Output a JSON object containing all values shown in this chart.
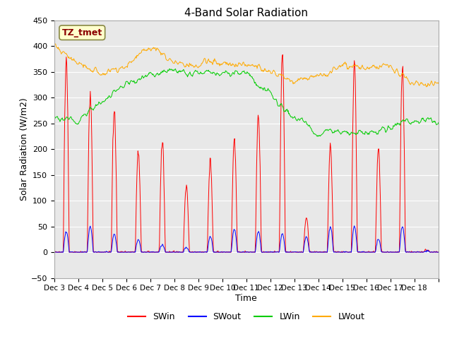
{
  "title": "4-Band Solar Radiation",
  "xlabel": "Time",
  "ylabel": "Solar Radiation (W/m2)",
  "ylim": [
    -50,
    450
  ],
  "annotation": "TZ_tmet",
  "legend": [
    "SWin",
    "SWout",
    "LWin",
    "LWout"
  ],
  "colors": {
    "SWin": "#ff0000",
    "SWout": "#0000ff",
    "LWin": "#00cc00",
    "LWout": "#ffaa00"
  },
  "background_color": "#e8e8e8",
  "xtick_labels": [
    "Dec 3",
    "Dec 4",
    "Dec 5",
    "Dec 6",
    "Dec 7",
    "Dec 8",
    "Dec 9",
    "Dec 10",
    "Dec 11",
    "Dec 12",
    "Dec 13",
    "Dec 14",
    "Dec 15",
    "Dec 16",
    "Dec 17",
    "Dec 18"
  ],
  "grid_color": "#ffffff",
  "title_fontsize": 11,
  "swin_peaks": [
    375,
    310,
    280,
    195,
    215,
    130,
    175,
    220,
    260,
    385,
    65,
    200,
    370,
    200,
    350,
    5
  ],
  "swout_peaks": [
    40,
    50,
    35,
    25,
    15,
    10,
    30,
    45,
    40,
    35,
    30,
    50,
    50,
    25,
    50,
    2
  ],
  "lwin_day_vals": [
    260,
    255,
    295,
    325,
    345,
    355,
    345,
    345,
    348,
    305,
    260,
    235,
    235,
    225,
    245,
    255
  ],
  "lwout_day_vals": [
    405,
    365,
    348,
    358,
    400,
    368,
    362,
    368,
    363,
    352,
    332,
    342,
    362,
    358,
    362,
    328
  ]
}
